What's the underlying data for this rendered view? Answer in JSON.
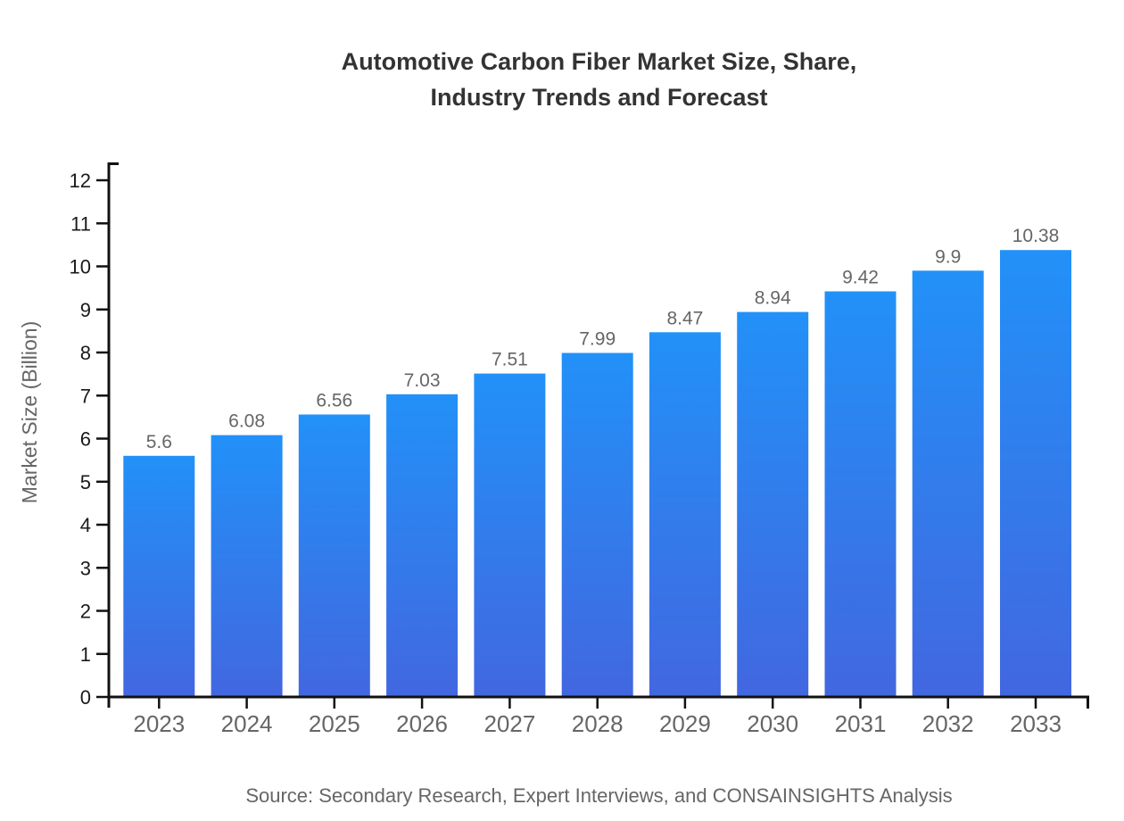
{
  "page": {
    "background": "#ffffff"
  },
  "chart_data": {
    "type": "bar",
    "title": "Automotive Carbon Fiber Market Size, Share,\nIndustry Trends and Forecast",
    "categories": [
      "2023",
      "2024",
      "2025",
      "2026",
      "2027",
      "2028",
      "2029",
      "2030",
      "2031",
      "2032",
      "2033"
    ],
    "values": [
      5.6,
      6.08,
      6.56,
      7.03,
      7.51,
      7.99,
      8.47,
      8.94,
      9.42,
      9.9,
      10.38
    ],
    "bar_value_labels": [
      "5.6",
      "6.08",
      "6.56",
      "7.03",
      "7.51",
      "7.99",
      "8.47",
      "8.94",
      "9.42",
      "9.9",
      "10.38"
    ],
    "xlabel": "",
    "ylabel": "Market Size (Billion)",
    "ylim": [
      0,
      12
    ],
    "ytick_step": 1,
    "ytick_labels": [
      "0",
      "1",
      "2",
      "3",
      "4",
      "5",
      "6",
      "7",
      "8",
      "9",
      "10",
      "11",
      "12"
    ],
    "grid": false,
    "legend": false,
    "source": "Source: Secondary Research, Expert Interviews, and CONSAINSIGHTS Analysis",
    "colors": {
      "bar_gradient_top": "#2291f8",
      "bar_gradient_bottom": "#4267e0",
      "axis": "#111111",
      "title": "#333333",
      "y_tick_label": "#1a1a1a",
      "x_tick_label": "#666666",
      "value_label": "#666666",
      "y_axis_label": "#666666",
      "source": "#666666",
      "background": "#ffffff"
    }
  }
}
